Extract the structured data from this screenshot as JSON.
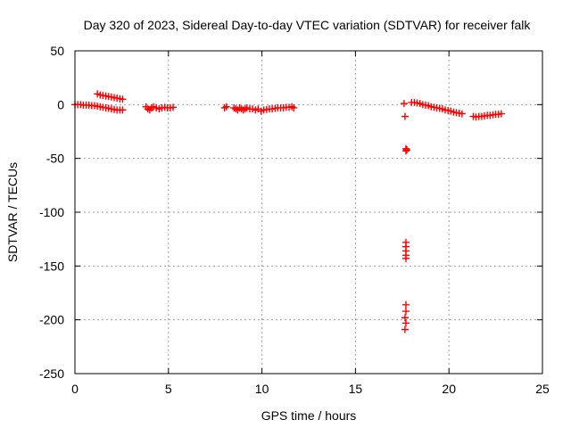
{
  "chart_data": {
    "type": "scatter",
    "title": "Day 320 of 2023, Sidereal Day-to-day VTEC variation (SDTVAR) for receiver falk",
    "xlabel": "GPS time / hours",
    "ylabel": "SDTVAR / TECUs",
    "xlim": [
      0,
      25
    ],
    "ylim": [
      -250,
      50
    ],
    "xticks": [
      0,
      5,
      10,
      15,
      20,
      25
    ],
    "yticks": [
      50,
      0,
      -50,
      -100,
      -150,
      -200,
      -250
    ],
    "grid": true,
    "marker": "+",
    "color": "#ff0000",
    "series": [
      {
        "name": "SDTVAR",
        "points": [
          [
            0.0,
            0
          ],
          [
            0.15,
            0
          ],
          [
            0.3,
            0
          ],
          [
            0.45,
            -0.5
          ],
          [
            0.6,
            -0.5
          ],
          [
            0.75,
            -0.5
          ],
          [
            0.9,
            -1
          ],
          [
            1.05,
            -1
          ],
          [
            1.2,
            -1.5
          ],
          [
            1.35,
            -2
          ],
          [
            1.5,
            -2.5
          ],
          [
            1.65,
            -3
          ],
          [
            1.8,
            -3.5
          ],
          [
            1.95,
            -4
          ],
          [
            2.1,
            -4.5
          ],
          [
            2.25,
            -5
          ],
          [
            2.4,
            -5
          ],
          [
            2.55,
            -5
          ],
          [
            1.2,
            10
          ],
          [
            1.35,
            9
          ],
          [
            1.5,
            8.5
          ],
          [
            1.65,
            8
          ],
          [
            1.8,
            7.5
          ],
          [
            1.95,
            7
          ],
          [
            2.1,
            6.5
          ],
          [
            2.25,
            6
          ],
          [
            2.4,
            5.5
          ],
          [
            2.55,
            5
          ],
          [
            3.8,
            -2
          ],
          [
            3.9,
            -4
          ],
          [
            4.0,
            -5
          ],
          [
            4.1,
            -3
          ],
          [
            4.2,
            -2
          ],
          [
            4.35,
            -3
          ],
          [
            4.5,
            -4
          ],
          [
            4.65,
            -3
          ],
          [
            4.8,
            -2.5
          ],
          [
            4.95,
            -3
          ],
          [
            5.1,
            -3
          ],
          [
            5.25,
            -2.5
          ],
          [
            8.0,
            -3
          ],
          [
            8.1,
            -2
          ],
          [
            8.5,
            -3
          ],
          [
            8.6,
            -4
          ],
          [
            8.7,
            -5
          ],
          [
            8.8,
            -3
          ],
          [
            8.9,
            -4
          ],
          [
            9.0,
            -5
          ],
          [
            9.1,
            -4
          ],
          [
            9.2,
            -3
          ],
          [
            9.35,
            -4
          ],
          [
            9.5,
            -4
          ],
          [
            9.65,
            -5
          ],
          [
            9.8,
            -4
          ],
          [
            9.95,
            -6
          ],
          [
            10.1,
            -5
          ],
          [
            10.25,
            -4.5
          ],
          [
            10.4,
            -4
          ],
          [
            10.55,
            -4
          ],
          [
            10.7,
            -3.5
          ],
          [
            10.85,
            -3
          ],
          [
            11.0,
            -3
          ],
          [
            11.15,
            -3
          ],
          [
            11.3,
            -2.5
          ],
          [
            11.45,
            -2.5
          ],
          [
            11.6,
            -2
          ],
          [
            11.7,
            -3
          ],
          [
            17.6,
            1
          ],
          [
            17.65,
            -11
          ],
          [
            17.7,
            -41
          ],
          [
            17.7,
            -43
          ],
          [
            17.75,
            -42
          ],
          [
            17.7,
            -128
          ],
          [
            17.7,
            -132
          ],
          [
            17.7,
            -136
          ],
          [
            17.7,
            -140
          ],
          [
            17.7,
            -143
          ],
          [
            17.7,
            -186
          ],
          [
            17.7,
            -192
          ],
          [
            17.65,
            -198
          ],
          [
            17.7,
            -203
          ],
          [
            17.65,
            -209
          ],
          [
            18.0,
            2
          ],
          [
            18.15,
            2
          ],
          [
            18.3,
            1.5
          ],
          [
            18.45,
            1
          ],
          [
            18.6,
            0
          ],
          [
            18.75,
            -0.5
          ],
          [
            18.9,
            -1
          ],
          [
            19.05,
            -2
          ],
          [
            19.2,
            -2.5
          ],
          [
            19.35,
            -3
          ],
          [
            19.5,
            -3.5
          ],
          [
            19.65,
            -4
          ],
          [
            19.8,
            -5
          ],
          [
            19.95,
            -5.5
          ],
          [
            20.1,
            -6
          ],
          [
            20.25,
            -7
          ],
          [
            20.4,
            -7.5
          ],
          [
            20.55,
            -8
          ],
          [
            20.7,
            -8.5
          ],
          [
            21.3,
            -11
          ],
          [
            21.45,
            -11.5
          ],
          [
            21.6,
            -11
          ],
          [
            21.75,
            -11
          ],
          [
            21.9,
            -10.5
          ],
          [
            22.05,
            -10
          ],
          [
            22.2,
            -10
          ],
          [
            22.35,
            -9.5
          ],
          [
            22.5,
            -9
          ],
          [
            22.65,
            -9
          ],
          [
            22.8,
            -8.5
          ]
        ]
      }
    ]
  }
}
